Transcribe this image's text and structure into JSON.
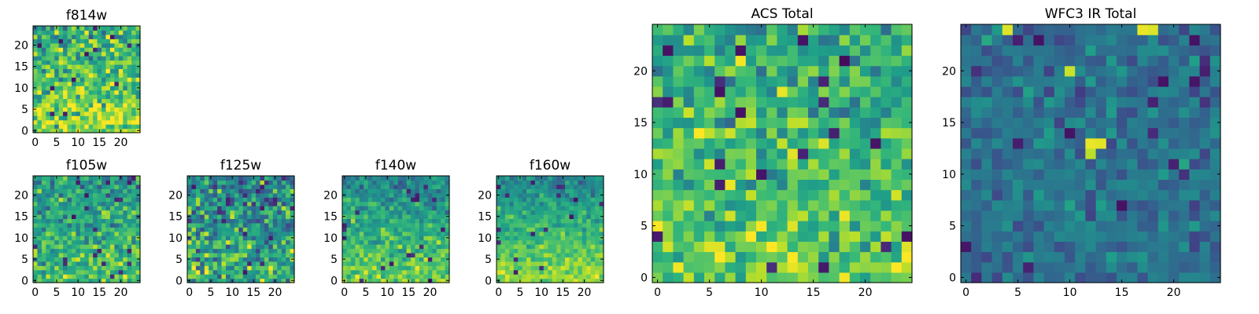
{
  "figure": {
    "background": "#ffffff",
    "colormap": "viridis"
  },
  "chart_data": [
    {
      "type": "heatmap",
      "id": "f814w",
      "title": "f814w",
      "band": "ACS",
      "grid": [
        25,
        25
      ],
      "xlim": [
        0,
        25
      ],
      "ylim": [
        0,
        25
      ],
      "xticks": [
        0,
        5,
        10,
        15,
        20
      ],
      "yticks": [
        0,
        5,
        10,
        15,
        20
      ],
      "value_range": [
        0,
        1
      ],
      "seed": 11,
      "base": 0.72,
      "y_gradient": -0.25,
      "noise": 0.2,
      "hotspots": []
    },
    {
      "type": "heatmap",
      "id": "f105w",
      "title": "f105w",
      "band": "WFC3 IR",
      "grid": [
        25,
        25
      ],
      "xlim": [
        0,
        25
      ],
      "ylim": [
        0,
        25
      ],
      "xticks": [
        0,
        5,
        10,
        15,
        20
      ],
      "yticks": [
        0,
        5,
        10,
        15,
        20
      ],
      "value_range": [
        0,
        1
      ],
      "seed": 23,
      "base": 0.62,
      "y_gradient": -0.2,
      "noise": 0.16,
      "hotspots": [
        {
          "x": 9,
          "y": 15,
          "v": 0.05
        },
        {
          "x": 7,
          "y": 4,
          "v": 0.12
        },
        {
          "x": 16,
          "y": 4,
          "v": 0.1
        }
      ]
    },
    {
      "type": "heatmap",
      "id": "f125w",
      "title": "f125w",
      "band": "WFC3 IR",
      "grid": [
        25,
        25
      ],
      "xlim": [
        0,
        25
      ],
      "ylim": [
        0,
        25
      ],
      "xticks": [
        0,
        5,
        10,
        15,
        20
      ],
      "yticks": [
        0,
        5,
        10,
        15,
        20
      ],
      "value_range": [
        0,
        1
      ],
      "seed": 37,
      "base": 0.55,
      "y_gradient": -0.2,
      "noise": 0.22,
      "hotspots": [
        {
          "x": 8,
          "y": 14,
          "v": 0.1
        },
        {
          "x": 13,
          "y": 18,
          "v": 0.15
        }
      ]
    },
    {
      "type": "heatmap",
      "id": "f140w",
      "title": "f140w",
      "band": "WFC3 IR",
      "grid": [
        25,
        25
      ],
      "xlim": [
        0,
        25
      ],
      "ylim": [
        0,
        25
      ],
      "xticks": [
        0,
        5,
        10,
        15,
        20
      ],
      "yticks": [
        0,
        5,
        10,
        15,
        20
      ],
      "value_range": [
        0,
        1
      ],
      "seed": 41,
      "base": 0.62,
      "y_gradient": -0.35,
      "noise": 0.12,
      "hotspots": [
        {
          "x": 15,
          "y": 6,
          "v": 0.1
        },
        {
          "x": 16,
          "y": 6,
          "v": 0.15
        }
      ]
    },
    {
      "type": "heatmap",
      "id": "f160w",
      "title": "f160w",
      "band": "WFC3 IR",
      "grid": [
        25,
        25
      ],
      "xlim": [
        0,
        25
      ],
      "ylim": [
        0,
        25
      ],
      "xticks": [
        0,
        5,
        10,
        15,
        20
      ],
      "yticks": [
        0,
        5,
        10,
        15,
        20
      ],
      "value_range": [
        0,
        1
      ],
      "seed": 53,
      "base": 0.66,
      "y_gradient": -0.4,
      "noise": 0.1,
      "hotspots": []
    },
    {
      "type": "heatmap",
      "id": "acs-total",
      "title": "ACS Total",
      "band": "ACS",
      "grid": [
        25,
        25
      ],
      "xlim": [
        0,
        25
      ],
      "ylim": [
        0,
        25
      ],
      "xticks": [
        0,
        5,
        10,
        15,
        20
      ],
      "yticks": [
        0,
        5,
        10,
        15,
        20
      ],
      "value_range": [
        0,
        1
      ],
      "seed": 61,
      "base": 0.68,
      "y_gradient": -0.15,
      "noise": 0.17,
      "hotspots": [
        {
          "x": 18,
          "y": 21,
          "v": 0.03
        },
        {
          "x": 6,
          "y": 18,
          "v": 0.05
        },
        {
          "x": 8,
          "y": 16,
          "v": 0.05
        },
        {
          "x": 24,
          "y": 4,
          "v": 0.05
        },
        {
          "x": 12,
          "y": 18,
          "v": 0.97
        },
        {
          "x": 1,
          "y": 22,
          "v": 0.05
        }
      ]
    },
    {
      "type": "heatmap",
      "id": "wfc3-ir-total",
      "title": "WFC3 IR Total",
      "band": "WFC3 IR",
      "grid": [
        25,
        25
      ],
      "xlim": [
        0,
        25
      ],
      "ylim": [
        0,
        25
      ],
      "xticks": [
        0,
        5,
        10,
        15,
        20
      ],
      "yticks": [
        0,
        5,
        10,
        15,
        20
      ],
      "value_range": [
        0,
        1
      ],
      "seed": 79,
      "base": 0.38,
      "y_gradient": 0.0,
      "noise": 0.1,
      "hotspots": [
        {
          "x": 17,
          "y": 24,
          "v": 0.97
        },
        {
          "x": 18,
          "y": 24,
          "v": 0.95
        },
        {
          "x": 4,
          "y": 24,
          "v": 0.95
        },
        {
          "x": 10,
          "y": 20,
          "v": 0.92
        },
        {
          "x": 12,
          "y": 13,
          "v": 0.97
        },
        {
          "x": 13,
          "y": 13,
          "v": 0.96
        },
        {
          "x": 12,
          "y": 12,
          "v": 0.9
        },
        {
          "x": 10,
          "y": 14,
          "v": 0.05
        },
        {
          "x": 15,
          "y": 7,
          "v": 0.05
        },
        {
          "x": 22,
          "y": 23,
          "v": 0.05
        },
        {
          "x": 7,
          "y": 23,
          "v": 0.05
        }
      ]
    }
  ]
}
